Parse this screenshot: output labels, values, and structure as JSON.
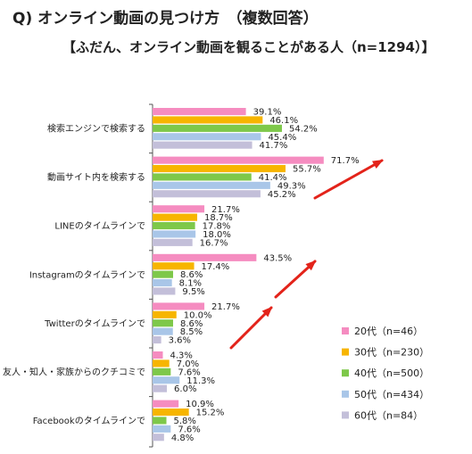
{
  "header": {
    "question": "Q) オンライン動画の見つけ方　（複数回答）",
    "subtitle": "【ふだん、オンライン動画を観ることがある人（n=1294）】"
  },
  "chart_data": {
    "type": "bar",
    "orientation": "horizontal",
    "categories": [
      "検索エンジンで検索する",
      "動画サイト内を検索する",
      "LINEのタイムラインで",
      "Instagramのタイムラインで",
      "Twitterのタイムラインで",
      "友人・知人・家族からのクチコミで",
      "Facebookのタイムラインで"
    ],
    "series": [
      {
        "name": "20代（n=46）",
        "color": "#f58cc0",
        "values": [
          39.1,
          71.7,
          21.7,
          43.5,
          21.7,
          4.3,
          10.9
        ]
      },
      {
        "name": "30代（n=230）",
        "color": "#f7b500",
        "values": [
          46.1,
          55.7,
          18.7,
          17.4,
          10.0,
          7.0,
          15.2
        ]
      },
      {
        "name": "40代（n=500）",
        "color": "#7ec84a",
        "values": [
          54.2,
          41.4,
          17.8,
          8.6,
          8.6,
          7.6,
          5.8
        ]
      },
      {
        "name": "50代（n=434）",
        "color": "#a9c6e8",
        "values": [
          45.4,
          49.3,
          18.0,
          8.1,
          8.5,
          11.3,
          7.6
        ]
      },
      {
        "name": "60代（n=84）",
        "color": "#c3bfd9",
        "values": [
          41.7,
          45.2,
          16.7,
          9.5,
          3.6,
          6.0,
          4.8
        ]
      }
    ],
    "value_suffix": "%",
    "xlim": [
      0,
      100
    ],
    "legend_position": "bottom-right",
    "annotations": "red arrows pointing up-right beside the upper bars"
  }
}
